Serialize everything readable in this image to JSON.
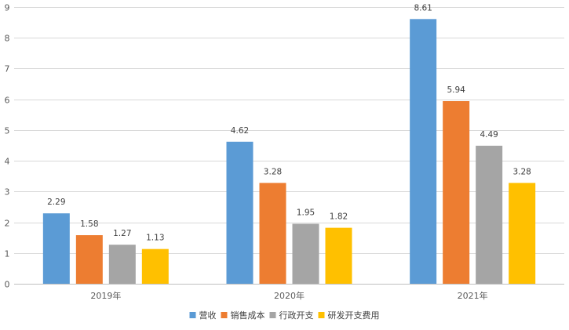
{
  "chart_data": {
    "type": "bar",
    "categories": [
      "2019年",
      "2020年",
      "2021年"
    ],
    "series": [
      {
        "name": "营收",
        "values": [
          2.29,
          4.62,
          8.61
        ],
        "color": "#5B9BD5"
      },
      {
        "name": "销售成本",
        "values": [
          1.58,
          3.28,
          5.94
        ],
        "color": "#ED7D31"
      },
      {
        "name": "行政开支",
        "values": [
          1.27,
          1.95,
          4.49
        ],
        "color": "#A5A5A5"
      },
      {
        "name": "研发开支费用",
        "values": [
          1.13,
          1.82,
          3.28
        ],
        "color": "#FFC000"
      }
    ],
    "ylim": [
      0,
      9
    ],
    "yticks": [
      0,
      1,
      2,
      3,
      4,
      5,
      6,
      7,
      8,
      9
    ],
    "grid": true,
    "legend_position": "bottom",
    "data_labels": [
      [
        "2.29",
        "1.58",
        "1.27",
        "1.13"
      ],
      [
        "4.62",
        "3.28",
        "1.95",
        "1.82"
      ],
      [
        "8.61",
        "5.94",
        "4.49",
        "3.28"
      ]
    ],
    "title": "",
    "xlabel": "",
    "ylabel": ""
  }
}
